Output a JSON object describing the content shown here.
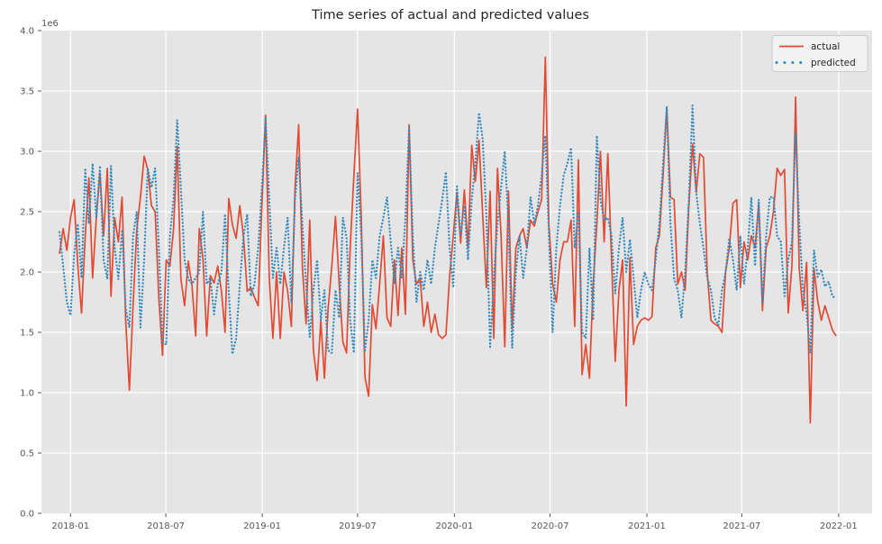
{
  "chart_data": {
    "type": "line",
    "title": "Time series of actual and predicted values",
    "y_offset_label": "1e6",
    "value_unit": "1e6",
    "grid": true,
    "plot_bg_color": "#E5E5E5",
    "grid_color": "#FFFFFF",
    "tick_color": "#555555",
    "legend": {
      "position": "upper right"
    },
    "ylim": [
      0.0,
      4.0
    ],
    "y_ticks": [
      {
        "label": "0.0",
        "value": 0.0
      },
      {
        "label": "0.5",
        "value": 0.5
      },
      {
        "label": "1.0",
        "value": 1.0
      },
      {
        "label": "1.5",
        "value": 1.5
      },
      {
        "label": "2.0",
        "value": 2.0
      },
      {
        "label": "2.5",
        "value": 2.5
      },
      {
        "label": "3.0",
        "value": 3.0
      },
      {
        "label": "3.5",
        "value": 3.5
      },
      {
        "label": "4.0",
        "value": 4.0
      }
    ],
    "x_ticks": [
      {
        "label": "2018-01",
        "pos": 3.0
      },
      {
        "label": "2018-07",
        "pos": 28.9
      },
      {
        "label": "2019-01",
        "pos": 55.1
      },
      {
        "label": "2019-07",
        "pos": 81.0
      },
      {
        "label": "2020-01",
        "pos": 107.3
      },
      {
        "label": "2020-07",
        "pos": 133.3
      },
      {
        "label": "2021-01",
        "pos": 159.6
      },
      {
        "label": "2021-07",
        "pos": 185.4
      },
      {
        "label": "2022-01",
        "pos": 211.7
      }
    ],
    "series": [
      {
        "name": "actual",
        "color": "#E24A33",
        "line_style": "solid",
        "values": [
          2.15,
          2.36,
          2.18,
          2.45,
          2.6,
          2.05,
          1.66,
          2.3,
          2.78,
          1.95,
          2.45,
          2.82,
          2.3,
          2.86,
          1.8,
          2.45,
          2.25,
          2.62,
          1.6,
          1.02,
          1.72,
          2.35,
          2.62,
          2.96,
          2.85,
          2.55,
          2.5,
          1.78,
          1.31,
          2.1,
          2.05,
          2.35,
          3.04,
          1.94,
          1.72,
          2.09,
          1.89,
          1.47,
          2.36,
          2.11,
          1.47,
          1.97,
          1.91,
          2.05,
          1.84,
          1.5,
          2.61,
          2.39,
          2.28,
          2.55,
          2.29,
          1.84,
          1.87,
          1.79,
          1.72,
          2.55,
          3.3,
          1.95,
          1.45,
          2.0,
          1.45,
          2.0,
          1.84,
          1.55,
          2.7,
          3.22,
          2.05,
          1.57,
          2.43,
          1.35,
          1.1,
          1.6,
          1.12,
          1.7,
          2.05,
          2.46,
          1.9,
          1.42,
          1.33,
          2.2,
          2.8,
          3.35,
          2.45,
          1.13,
          0.97,
          1.73,
          1.53,
          1.9,
          2.3,
          1.62,
          1.55,
          2.1,
          1.64,
          2.2,
          1.65,
          3.22,
          2.1,
          1.9,
          1.95,
          1.55,
          1.75,
          1.5,
          1.65,
          1.48,
          1.45,
          1.48,
          1.96,
          2.3,
          2.66,
          2.24,
          2.68,
          2.2,
          3.05,
          2.75,
          3.09,
          2.47,
          1.87,
          2.67,
          1.45,
          2.86,
          2.3,
          1.38,
          2.67,
          1.53,
          2.2,
          2.3,
          2.36,
          2.2,
          2.43,
          2.38,
          2.5,
          2.6,
          3.78,
          2.4,
          1.9,
          1.75,
          2.1,
          2.25,
          2.25,
          2.43,
          1.55,
          2.93,
          1.15,
          1.4,
          1.12,
          1.9,
          2.4,
          3.0,
          2.25,
          2.98,
          2.1,
          1.26,
          1.85,
          2.1,
          0.89,
          2.12,
          1.4,
          1.55,
          1.6,
          1.62,
          1.6,
          1.63,
          2.2,
          2.3,
          2.8,
          3.36,
          2.62,
          2.6,
          1.9,
          2.0,
          1.85,
          2.55,
          3.06,
          2.66,
          2.98,
          2.95,
          2.0,
          1.6,
          1.57,
          1.55,
          1.5,
          2.0,
          2.2,
          2.57,
          2.6,
          1.87,
          2.25,
          2.1,
          2.3,
          2.2,
          2.57,
          1.68,
          2.2,
          2.3,
          2.5,
          2.86,
          2.8,
          2.85,
          1.66,
          2.05,
          3.45,
          2.03,
          1.68,
          2.08,
          0.75,
          2.03,
          1.76,
          1.6,
          1.72,
          1.62,
          1.52,
          1.47
        ]
      },
      {
        "name": "predicted",
        "color": "#348ABD",
        "line_style": "dotted",
        "values": [
          2.33,
          2.05,
          1.75,
          1.64,
          2.15,
          2.4,
          1.95,
          2.86,
          2.4,
          2.9,
          2.45,
          2.88,
          2.1,
          1.94,
          2.88,
          2.2,
          1.94,
          2.35,
          1.7,
          1.54,
          2.3,
          2.5,
          1.54,
          2.1,
          2.86,
          2.7,
          2.86,
          2.2,
          1.42,
          1.4,
          2.3,
          2.6,
          3.26,
          2.69,
          2.1,
          1.94,
          1.9,
          1.95,
          2.0,
          2.5,
          1.9,
          1.95,
          1.65,
          1.9,
          2.0,
          2.48,
          1.84,
          1.32,
          1.45,
          1.9,
          2.3,
          2.48,
          1.8,
          1.9,
          2.2,
          2.7,
          3.28,
          2.6,
          1.95,
          2.2,
          1.9,
          2.2,
          2.45,
          1.75,
          2.6,
          2.95,
          2.4,
          1.9,
          1.46,
          1.85,
          2.1,
          1.6,
          1.85,
          1.35,
          1.33,
          1.85,
          1.62,
          2.45,
          2.28,
          1.6,
          1.33,
          2.82,
          2.3,
          1.35,
          1.6,
          2.1,
          1.95,
          2.3,
          2.45,
          2.62,
          2.25,
          1.9,
          2.2,
          1.95,
          2.45,
          3.2,
          2.3,
          1.75,
          2.0,
          1.85,
          2.1,
          1.9,
          2.2,
          2.4,
          2.6,
          2.83,
          2.2,
          1.87,
          2.71,
          2.3,
          2.55,
          2.1,
          2.6,
          2.9,
          3.32,
          3.1,
          2.46,
          1.38,
          1.95,
          2.4,
          2.7,
          3.0,
          2.4,
          1.37,
          2.0,
          2.3,
          1.95,
          2.2,
          2.62,
          2.4,
          2.55,
          2.8,
          3.13,
          2.3,
          1.5,
          2.2,
          2.55,
          2.8,
          2.9,
          3.03,
          2.2,
          2.5,
          1.5,
          1.45,
          2.2,
          1.6,
          3.13,
          2.6,
          2.43,
          2.45,
          2.3,
          1.82,
          2.2,
          2.45,
          2.0,
          2.27,
          1.95,
          1.62,
          1.85,
          2.0,
          1.9,
          1.85,
          2.1,
          2.4,
          2.9,
          3.37,
          2.4,
          1.95,
          1.85,
          1.62,
          2.0,
          2.6,
          3.38,
          2.66,
          2.4,
          2.2,
          1.95,
          1.85,
          1.62,
          1.56,
          1.85,
          2.0,
          2.28,
          2.1,
          1.85,
          2.3,
          1.9,
          2.2,
          2.62,
          2.05,
          2.6,
          1.75,
          2.3,
          2.62,
          2.62,
          2.3,
          2.25,
          1.8,
          2.1,
          2.25,
          3.15,
          2.41,
          1.86,
          1.66,
          1.33,
          2.18,
          1.96,
          2.02,
          1.88,
          1.92,
          1.8,
          1.78
        ]
      }
    ]
  }
}
